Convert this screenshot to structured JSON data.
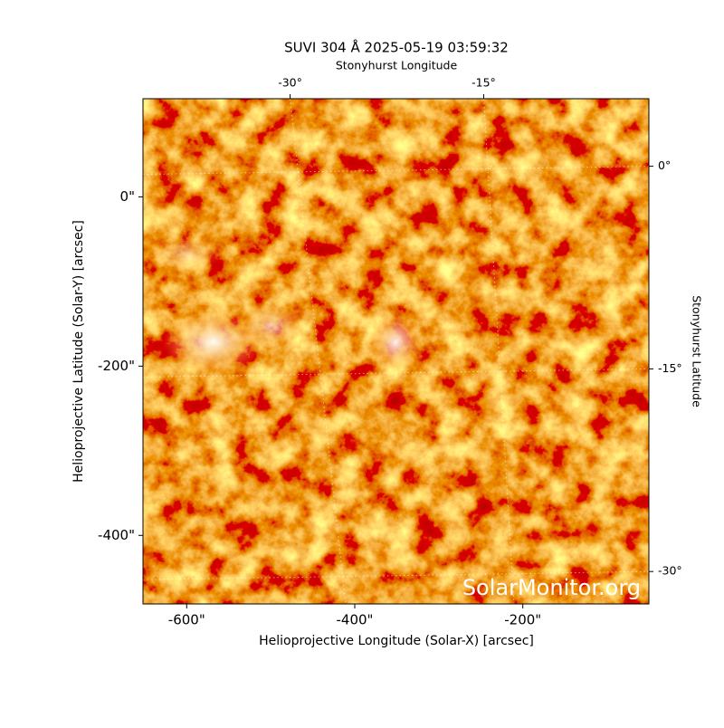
{
  "chart_data": {
    "type": "image",
    "title": "SUVI 304 Å 2025-05-19 03:59:32",
    "xlabel": "Helioprojective Longitude (Solar-X) [arcsec]",
    "ylabel": "Helioprojective Latitude (Solar-Y) [arcsec]",
    "x2label": "Stonyhurst Longitude",
    "y2label": "Stonyhurst Latitude",
    "xlim": [
      -652,
      -50
    ],
    "ylim": [
      -481,
      116
    ],
    "xticks": [
      {
        "value": -600,
        "label": "-600\""
      },
      {
        "value": -400,
        "label": "-400\""
      },
      {
        "value": -200,
        "label": "-200\""
      }
    ],
    "yticks": [
      {
        "value": -400,
        "label": "-400\""
      },
      {
        "value": -200,
        "label": "-200\""
      },
      {
        "value": 0,
        "label": "0\""
      }
    ],
    "x2lim": [
      -41.4,
      -2.2
    ],
    "x2ticks": [
      {
        "value": -30,
        "label": "-30°"
      },
      {
        "value": -15,
        "label": "-15°"
      }
    ],
    "y2lim": [
      -32.4,
      5
    ],
    "y2ticks": [
      {
        "value": 0,
        "label": "0°"
      },
      {
        "value": -15,
        "label": "-15°"
      },
      {
        "value": -30,
        "label": "-30°"
      }
    ],
    "watermark": "SolarMonitor.org"
  }
}
